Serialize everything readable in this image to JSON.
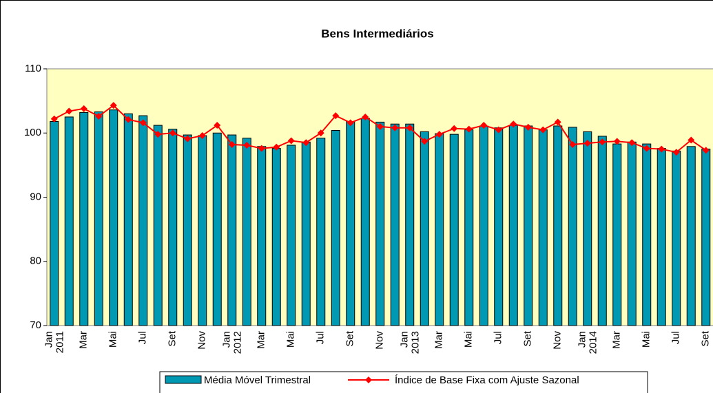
{
  "chart_data": {
    "type": "bar_line",
    "title": "Bens Intermediários",
    "categories": [
      "Jan",
      null,
      "Mar",
      null,
      "Mai",
      null,
      "Jul",
      null,
      "Set",
      null,
      "Nov",
      null,
      "Jan",
      null,
      "Mar",
      null,
      "Mai",
      null,
      "Jul",
      null,
      "Set",
      null,
      "Nov",
      null,
      "Jan",
      null,
      "Mar",
      null,
      "Mai",
      null,
      "Jul",
      null,
      "Set",
      null,
      "Nov",
      null,
      "Jan",
      null,
      "Mar",
      null,
      "Mai",
      null,
      "Jul",
      null,
      "Set"
    ],
    "year_labels": [
      "2011",
      null,
      null,
      null,
      null,
      null,
      null,
      null,
      null,
      null,
      null,
      null,
      "2012",
      null,
      null,
      null,
      null,
      null,
      null,
      null,
      null,
      null,
      null,
      null,
      "2013",
      null,
      null,
      null,
      null,
      null,
      null,
      null,
      null,
      null,
      null,
      null,
      "2014",
      null,
      null,
      null,
      null,
      null,
      null,
      null,
      null
    ],
    "series": [
      {
        "name": "Média Móvel Trimestral",
        "type": "bar",
        "color": "#0099b3",
        "values": [
          101.8,
          102.5,
          103.2,
          103.3,
          103.6,
          103.0,
          102.7,
          101.2,
          100.6,
          99.7,
          99.6,
          100.0,
          99.7,
          99.2,
          97.9,
          97.6,
          98.1,
          98.6,
          99.2,
          100.4,
          101.8,
          102.3,
          101.7,
          101.4,
          101.4,
          100.2,
          99.9,
          99.8,
          100.5,
          101.1,
          100.8,
          101.2,
          101.1,
          100.5,
          101.1,
          100.9,
          100.2,
          99.5,
          98.3,
          98.6,
          98.3,
          97.6,
          97.2,
          97.9,
          97.5
        ]
      },
      {
        "name": "Índice de Base Fixa com Ajuste Sazonal",
        "type": "line",
        "color": "#ff0000",
        "values": [
          102.2,
          103.4,
          103.8,
          102.6,
          104.3,
          102.1,
          101.6,
          99.8,
          100.0,
          99.1,
          99.6,
          101.2,
          98.2,
          98.1,
          97.6,
          97.8,
          98.8,
          98.5,
          100.0,
          102.7,
          101.6,
          102.5,
          101.0,
          100.8,
          100.8,
          98.7,
          99.8,
          100.7,
          100.6,
          101.2,
          100.5,
          101.4,
          100.9,
          100.5,
          101.7,
          98.2,
          98.4,
          98.6,
          98.7,
          98.5,
          97.6,
          97.5,
          97.0,
          98.9,
          97.3
        ]
      }
    ],
    "ylim": [
      70,
      110
    ],
    "yticks": [
      70,
      80,
      90,
      100,
      110
    ],
    "grid": false,
    "legend": "bottom"
  }
}
